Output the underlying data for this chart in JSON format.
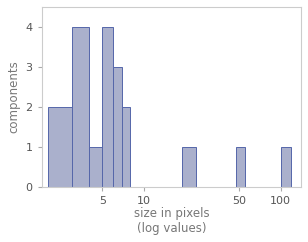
{
  "title": "",
  "xlabel": "size in pixels",
  "xlabel2": "(log values)",
  "ylabel": "components",
  "bar_color": "#aab0cc",
  "bar_edgecolor": "#5566aa",
  "background_color": "#ffffff",
  "ylim": [
    0,
    4.5
  ],
  "yticks": [
    0,
    1,
    2,
    3,
    4
  ],
  "bar_heights": [
    2,
    4,
    1,
    4,
    3,
    2,
    1,
    1,
    1
  ],
  "bar_log_lefts": [
    0.301,
    0.477,
    0.602,
    0.699,
    0.778,
    0.845,
    1.279,
    1.672,
    2.0
  ],
  "bar_log_rights": [
    0.477,
    0.602,
    0.699,
    0.778,
    0.845,
    0.903,
    1.38,
    1.74,
    2.079
  ],
  "xticks": [
    5,
    10,
    50,
    100
  ],
  "xtick_labels": [
    "5",
    "10",
    "50",
    "100"
  ],
  "xlim_log": [
    0.255,
    2.15
  ]
}
